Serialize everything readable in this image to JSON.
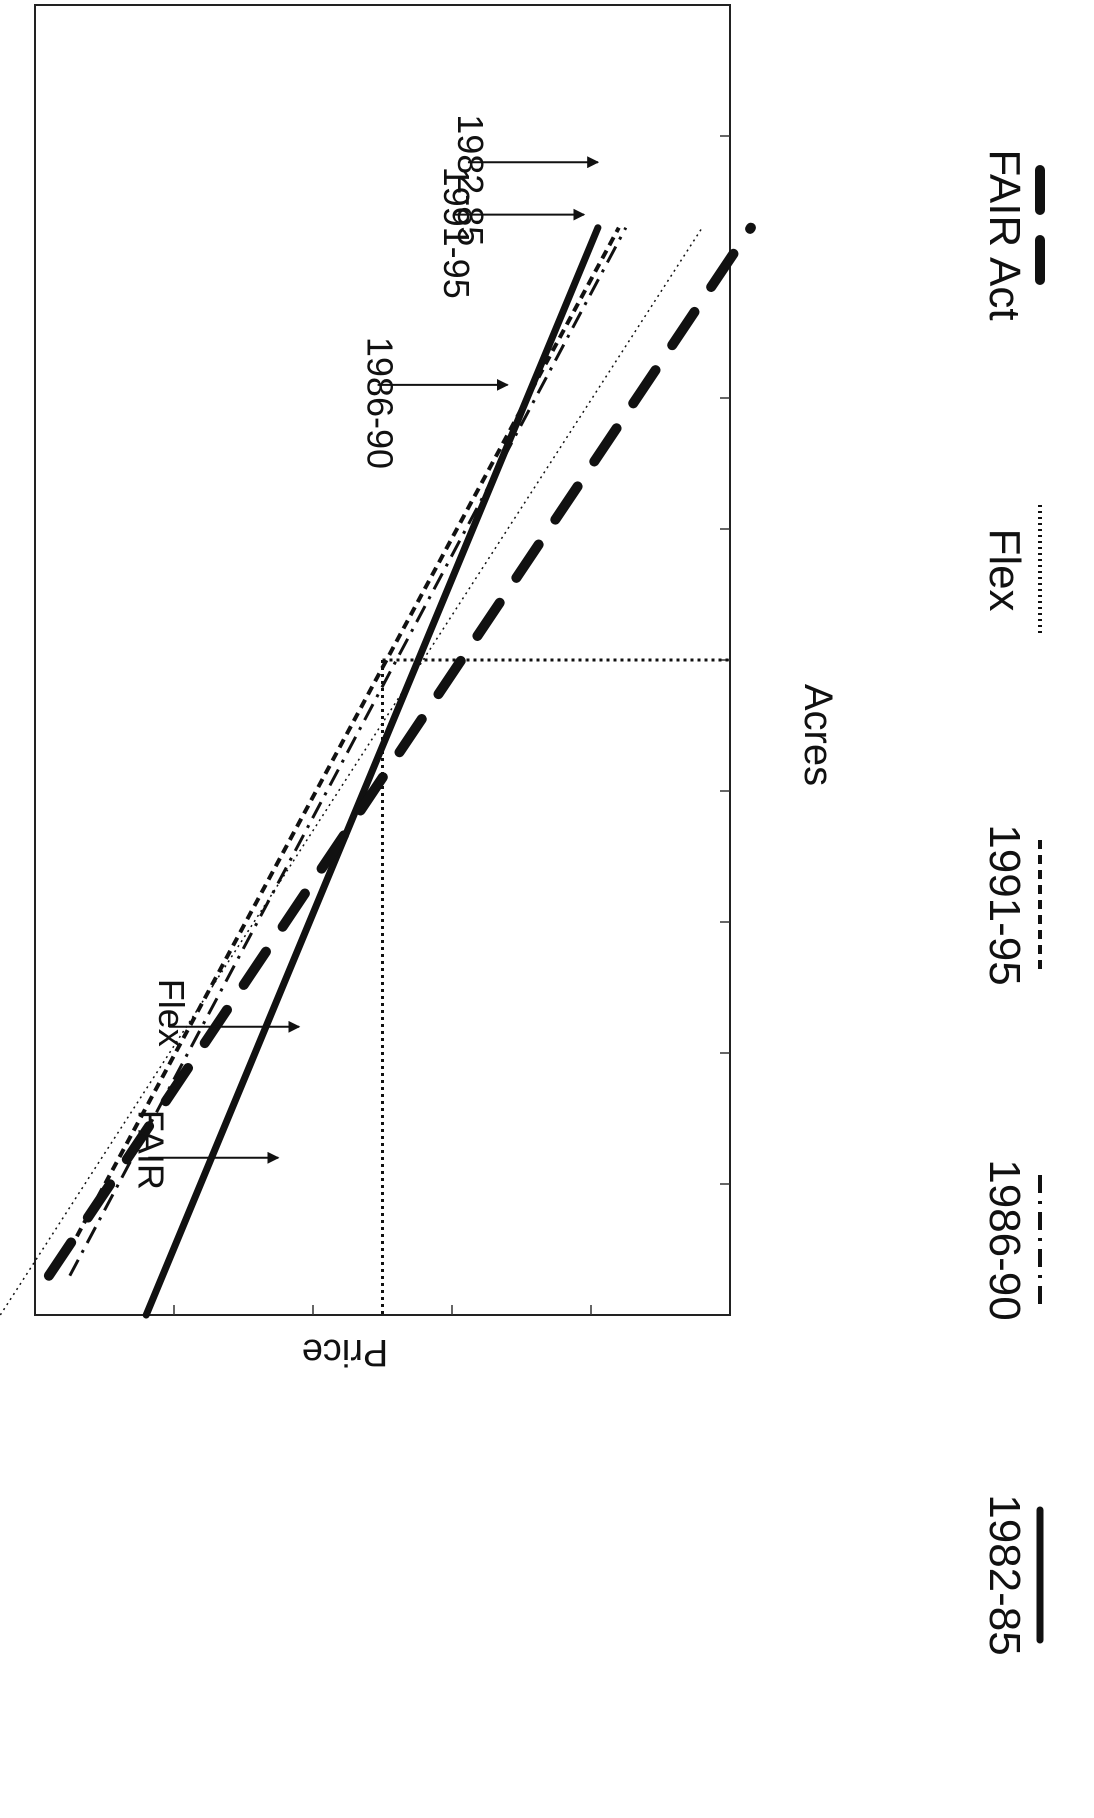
{
  "chart_data": {
    "type": "line",
    "orientation": "rotated-90-clockwise",
    "xlabel": "Acres",
    "ylabel": "Price",
    "grid": false,
    "legend_placement": "right",
    "xlim": [
      0,
      10
    ],
    "ylim": [
      0,
      10
    ],
    "reference_point": {
      "x": 5,
      "y": 5
    },
    "series": [
      {
        "name": "1982-85",
        "style": "solid",
        "color": "#111111",
        "x": [
          0.0,
          8.3
        ],
        "y": [
          1.6,
          8.1
        ]
      },
      {
        "name": "1986-90",
        "style": "dash-dot",
        "color": "#111111",
        "x": [
          0.3,
          8.3
        ],
        "y": [
          0.5,
          8.5
        ]
      },
      {
        "name": "1991-95",
        "style": "short-dash",
        "color": "#111111",
        "x": [
          0.5,
          8.3
        ],
        "y": [
          0.5,
          8.4
        ]
      },
      {
        "name": "Flex",
        "style": "fine-dot",
        "color": "#111111",
        "x": [
          0.0,
          8.3
        ],
        "y": [
          -0.5,
          9.6
        ]
      },
      {
        "name": "FAIR Act",
        "style": "long-dash",
        "color": "#111111",
        "x": [
          0.3,
          8.3
        ],
        "y": [
          0.2,
          10.3
        ]
      }
    ],
    "annotations": [
      {
        "text": "1982-85",
        "arrow_target": {
          "x": 8.8,
          "y": 8.1
        }
      },
      {
        "text": "1991-95",
        "arrow_target": {
          "x": 8.4,
          "y": 7.9
        }
      },
      {
        "text": "1986-90",
        "arrow_target": {
          "x": 7.1,
          "y": 6.8
        }
      },
      {
        "text": "Flex",
        "arrow_target": {
          "x": 2.2,
          "y": 3.8
        }
      },
      {
        "text": "FAIR",
        "arrow_target": {
          "x": 1.2,
          "y": 3.5
        }
      }
    ]
  }
}
